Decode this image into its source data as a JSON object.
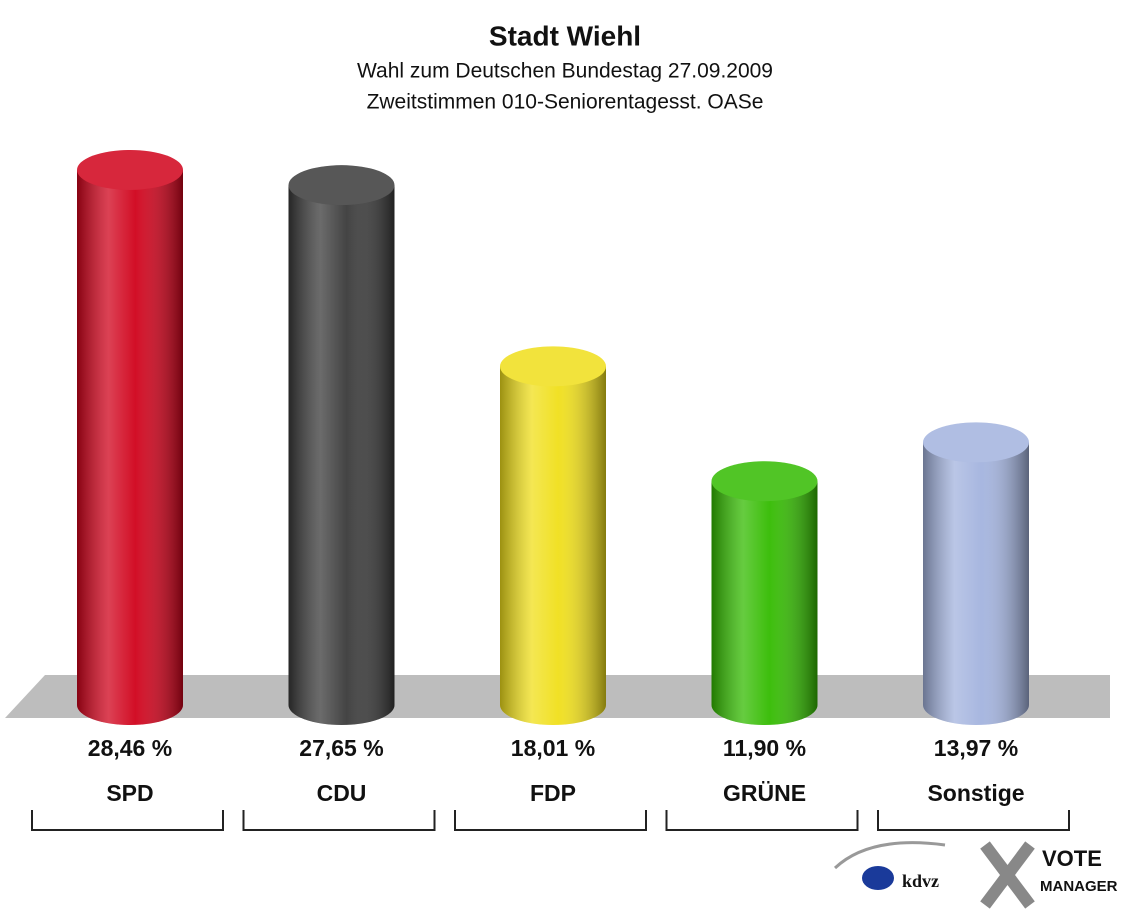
{
  "chart_data": {
    "type": "bar",
    "title": "Stadt Wiehl",
    "subtitle": [
      "Wahl zum Deutschen Bundestag 27.09.2009",
      "Zweitstimmen 010-Seniorentagesst. OASe"
    ],
    "categories": [
      "SPD",
      "CDU",
      "FDP",
      "GRÜNE",
      "Sonstige"
    ],
    "values": [
      28.46,
      27.65,
      18.01,
      11.9,
      13.97
    ],
    "value_labels": [
      "28,46 %",
      "27,65 %",
      "18,01 %",
      "11,90 %",
      "13,97 %"
    ],
    "colors": [
      "#d0021b",
      "#3a3a3a",
      "#f0df1a",
      "#33bb00",
      "#a3b3de"
    ],
    "logo": [
      "kdvz",
      "VOTE",
      "MANAGER"
    ]
  }
}
